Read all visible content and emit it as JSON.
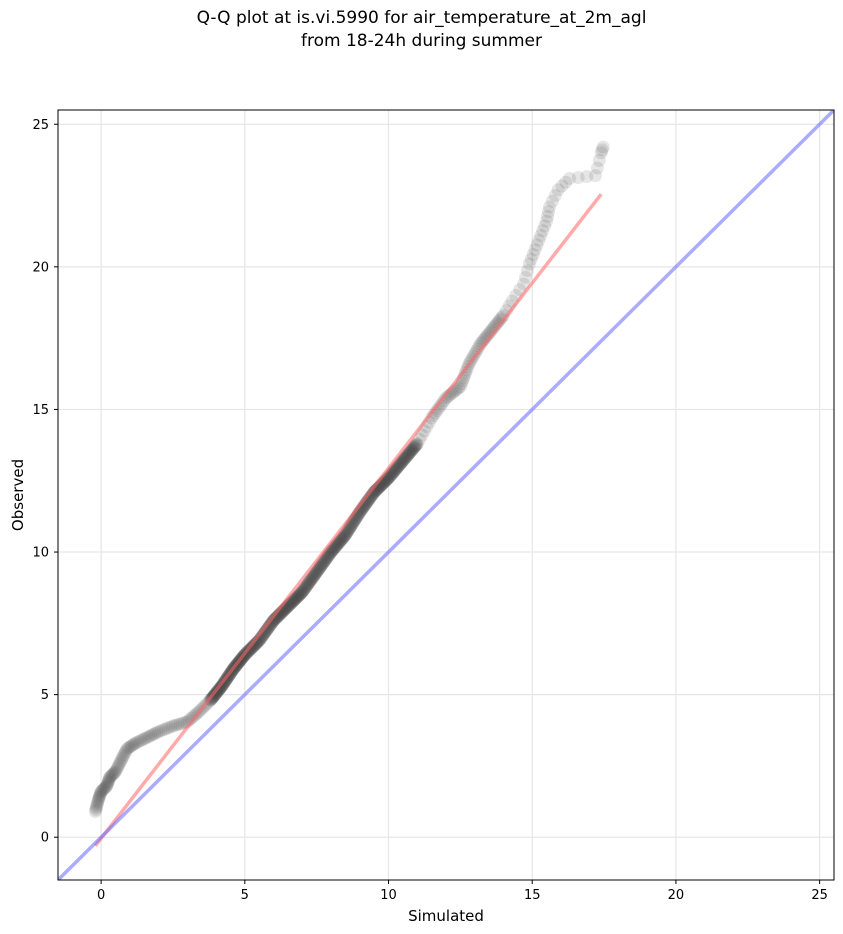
{
  "chart_data": {
    "type": "scatter",
    "title_line1": "Q-Q plot at is.vi.5990 for air_temperature_at_2m_agl",
    "title_line2": "from 18-24h during summer",
    "xlabel": "Simulated",
    "ylabel": "Observed",
    "xlim": [
      -1.5,
      25.5
    ],
    "ylim": [
      -1.5,
      25.5
    ],
    "xticks": [
      0,
      5,
      10,
      15,
      20,
      25
    ],
    "yticks": [
      0,
      5,
      10,
      15,
      20,
      25
    ],
    "grid": true,
    "colors": {
      "points": "#404040",
      "fit_line": "#ff6666",
      "identity_line": "#6666ff",
      "grid": "#e6e6e6"
    },
    "quantile_curve": [
      [
        -0.2,
        0.9
      ],
      [
        -0.1,
        1.3
      ],
      [
        0.0,
        1.6
      ],
      [
        0.2,
        1.8
      ],
      [
        0.3,
        2.1
      ],
      [
        0.5,
        2.3
      ],
      [
        0.7,
        2.7
      ],
      [
        0.9,
        3.1
      ],
      [
        1.2,
        3.3
      ],
      [
        1.6,
        3.5
      ],
      [
        2.0,
        3.7
      ],
      [
        2.5,
        3.9
      ],
      [
        3.0,
        4.05
      ],
      [
        3.4,
        4.4
      ],
      [
        3.8,
        4.8
      ],
      [
        4.2,
        5.3
      ],
      [
        4.6,
        5.9
      ],
      [
        5.0,
        6.4
      ],
      [
        5.5,
        6.9
      ],
      [
        6.0,
        7.6
      ],
      [
        6.5,
        8.1
      ],
      [
        7.0,
        8.6
      ],
      [
        7.5,
        9.3
      ],
      [
        8.0,
        10.0
      ],
      [
        8.5,
        10.6
      ],
      [
        9.0,
        11.4
      ],
      [
        9.5,
        12.1
      ],
      [
        10.0,
        12.6
      ],
      [
        10.5,
        13.2
      ],
      [
        11.0,
        13.8
      ],
      [
        11.5,
        14.7
      ],
      [
        12.0,
        15.4
      ],
      [
        12.5,
        15.8
      ],
      [
        12.8,
        16.6
      ],
      [
        13.2,
        17.3
      ],
      [
        13.6,
        17.8
      ],
      [
        14.0,
        18.3
      ],
      [
        14.3,
        18.8
      ],
      [
        14.7,
        19.4
      ],
      [
        14.9,
        20.1
      ],
      [
        15.1,
        20.6
      ],
      [
        15.3,
        21.1
      ],
      [
        15.5,
        21.6
      ],
      [
        15.6,
        22.1
      ],
      [
        15.9,
        22.7
      ],
      [
        16.3,
        23.1
      ],
      [
        17.2,
        23.2
      ],
      [
        17.4,
        24.0
      ],
      [
        17.5,
        24.3
      ]
    ],
    "outer_points_count_estimate": "dense",
    "fit_line": {
      "x": [
        -0.2,
        17.4
      ],
      "y": [
        -0.3,
        22.55
      ]
    },
    "identity_line": {
      "x": [
        -1.5,
        25.5
      ],
      "y": [
        -1.5,
        25.5
      ]
    }
  }
}
